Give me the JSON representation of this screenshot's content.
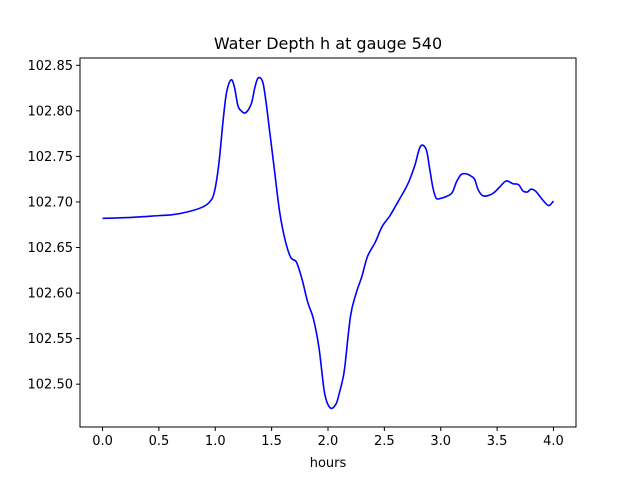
{
  "chart_data": {
    "type": "line",
    "title": "Water Depth h at gauge 540",
    "xlabel": "hours",
    "ylabel": "",
    "xlim": [
      -0.2,
      4.2
    ],
    "ylim": [
      102.453,
      102.858
    ],
    "grid": false,
    "x_ticks": [
      0.0,
      0.5,
      1.0,
      1.5,
      2.0,
      2.5,
      3.0,
      3.5,
      4.0
    ],
    "x_tick_labels": [
      "0.0",
      "0.5",
      "1.0",
      "1.5",
      "2.0",
      "2.5",
      "3.0",
      "3.5",
      "4.0"
    ],
    "y_ticks": [
      102.5,
      102.55,
      102.6,
      102.65,
      102.7,
      102.75,
      102.8,
      102.85
    ],
    "y_tick_labels": [
      "102.50",
      "102.55",
      "102.60",
      "102.65",
      "102.70",
      "102.75",
      "102.80",
      "102.85"
    ],
    "series": [
      {
        "color": "#0000ff",
        "x": [
          0.0,
          0.25,
          0.5,
          0.62,
          0.75,
          0.88,
          0.95,
          0.99,
          1.03,
          1.07,
          1.1,
          1.14,
          1.17,
          1.2,
          1.23,
          1.27,
          1.32,
          1.35,
          1.38,
          1.42,
          1.45,
          1.48,
          1.52,
          1.57,
          1.62,
          1.67,
          1.72,
          1.77,
          1.82,
          1.87,
          1.92,
          1.97,
          2.02,
          2.07,
          2.1,
          2.13,
          2.15,
          2.2,
          2.25,
          2.3,
          2.35,
          2.42,
          2.48,
          2.55,
          2.62,
          2.68,
          2.72,
          2.77,
          2.82,
          2.87,
          2.9,
          2.93,
          2.96,
          3.0,
          3.05,
          3.1,
          3.14,
          3.18,
          3.22,
          3.26,
          3.3,
          3.33,
          3.37,
          3.42,
          3.47,
          3.52,
          3.58,
          3.64,
          3.69,
          3.73,
          3.77,
          3.8,
          3.84,
          3.88,
          3.92,
          3.96,
          4.0
        ],
        "y": [
          102.682,
          102.683,
          102.685,
          102.686,
          102.689,
          102.694,
          102.7,
          102.71,
          102.74,
          102.79,
          102.82,
          102.834,
          102.826,
          102.806,
          102.8,
          102.798,
          102.808,
          102.825,
          102.836,
          102.832,
          102.81,
          102.78,
          102.74,
          102.69,
          102.658,
          102.639,
          102.634,
          102.615,
          102.59,
          102.572,
          102.54,
          102.49,
          102.474,
          102.478,
          102.49,
          102.505,
          102.52,
          102.575,
          102.6,
          102.618,
          102.64,
          102.656,
          102.673,
          102.685,
          102.7,
          102.713,
          102.723,
          102.74,
          102.761,
          102.758,
          102.738,
          102.716,
          102.704,
          102.704,
          102.706,
          102.71,
          102.722,
          102.73,
          102.731,
          102.729,
          102.725,
          102.714,
          102.707,
          102.707,
          102.71,
          102.716,
          102.723,
          102.72,
          102.719,
          102.712,
          102.711,
          102.714,
          102.712,
          102.706,
          102.7,
          102.696,
          102.701
        ]
      }
    ]
  }
}
